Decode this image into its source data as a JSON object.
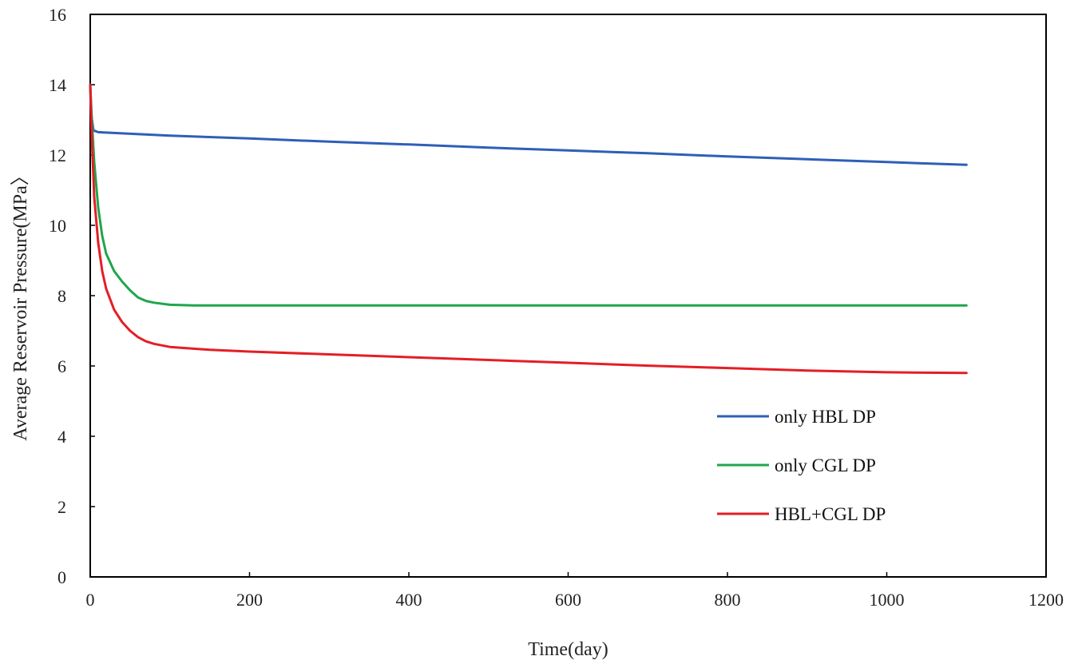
{
  "chart_data": {
    "type": "line",
    "title": "",
    "xlabel": "Time(day)",
    "ylabel": "Average Reservoir  Pressure(MPa〉",
    "xlim": [
      0,
      1200
    ],
    "ylim": [
      0,
      16
    ],
    "x_ticks": [
      0,
      200,
      400,
      600,
      800,
      1000,
      1200
    ],
    "y_ticks": [
      0,
      2,
      4,
      6,
      8,
      10,
      12,
      14,
      16
    ],
    "x_tick_labels": [
      "0",
      "200",
      "400",
      "600",
      "800",
      "1000",
      "1200"
    ],
    "y_tick_labels": [
      "0",
      "2",
      "4",
      "6",
      "8",
      "10",
      "12",
      "14",
      "16"
    ],
    "grid": false,
    "legend_position": "bottom-right",
    "series": [
      {
        "name": "only HBL DP",
        "color": "#2e5fb8",
        "x": [
          0,
          1,
          4,
          10,
          100,
          200,
          300,
          400,
          500,
          600,
          700,
          800,
          900,
          1000,
          1100
        ],
        "y": [
          14.0,
          13.2,
          12.7,
          12.65,
          12.55,
          12.47,
          12.38,
          12.3,
          12.21,
          12.13,
          12.05,
          11.96,
          11.88,
          11.8,
          11.72
        ]
      },
      {
        "name": "only CGL DP",
        "color": "#1fa64a",
        "x": [
          0,
          2,
          5,
          10,
          15,
          20,
          30,
          40,
          50,
          60,
          70,
          80,
          100,
          130,
          200,
          400,
          600,
          800,
          1000,
          1100
        ],
        "y": [
          14.0,
          13.0,
          11.8,
          10.5,
          9.7,
          9.2,
          8.7,
          8.4,
          8.15,
          7.95,
          7.85,
          7.8,
          7.74,
          7.72,
          7.72,
          7.72,
          7.72,
          7.72,
          7.72,
          7.72
        ]
      },
      {
        "name": "HBL+CGL DP",
        "color": "#e41e26",
        "x": [
          0,
          2,
          5,
          10,
          15,
          20,
          30,
          40,
          50,
          60,
          70,
          80,
          100,
          150,
          200,
          300,
          400,
          500,
          600,
          700,
          800,
          900,
          1000,
          1100
        ],
        "y": [
          14.0,
          12.5,
          10.8,
          9.5,
          8.7,
          8.2,
          7.6,
          7.25,
          7.0,
          6.82,
          6.7,
          6.63,
          6.54,
          6.46,
          6.41,
          6.33,
          6.25,
          6.17,
          6.09,
          6.01,
          5.94,
          5.87,
          5.82,
          5.8
        ]
      }
    ]
  }
}
